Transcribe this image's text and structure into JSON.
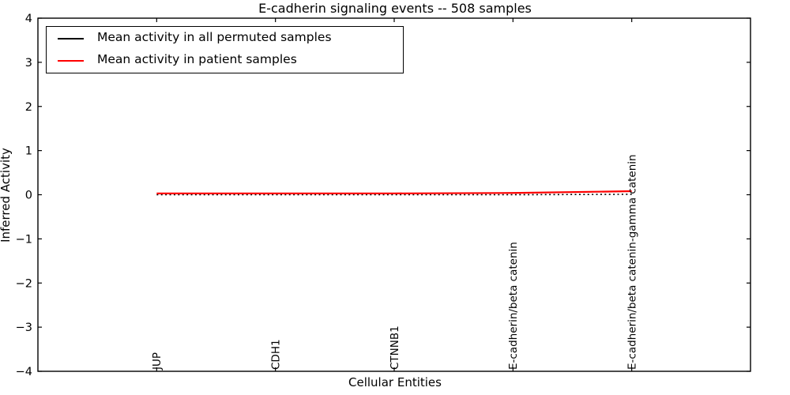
{
  "chart_data": {
    "type": "line",
    "title": "E-cadherin signaling events -- 508 samples",
    "xlabel": "Cellular Entities",
    "ylabel": "Inferred Activity",
    "xlim": [
      -1,
      5
    ],
    "ylim": [
      -4,
      4
    ],
    "grid": false,
    "yticks": [
      {
        "value": 4,
        "label": "4"
      },
      {
        "value": 3,
        "label": "3"
      },
      {
        "value": 2,
        "label": "2"
      },
      {
        "value": 1,
        "label": "1"
      },
      {
        "value": 0,
        "label": "0"
      },
      {
        "value": -1,
        "label": "−1"
      },
      {
        "value": -2,
        "label": "−2"
      },
      {
        "value": -3,
        "label": "−3"
      },
      {
        "value": -4,
        "label": "−4"
      }
    ],
    "categories": [
      "JUP",
      "CDH1",
      "CTNNB1",
      "E-cadherin/beta catenin",
      "E-cadherin/beta catenin-gamma catenin"
    ],
    "series": [
      {
        "name": "Mean activity in all permuted samples",
        "color": "#000000",
        "linestyle": "dotted",
        "linewidth": 1.6,
        "values": [
          0.0,
          0.0,
          0.0,
          0.0,
          0.01
        ]
      },
      {
        "name": "Mean activity in patient samples",
        "color": "#ff0000",
        "linestyle": "solid",
        "linewidth": 2.2,
        "values": [
          0.03,
          0.03,
          0.03,
          0.04,
          0.08
        ]
      }
    ],
    "legend": {
      "position": "upper left",
      "border_color": "#000000",
      "background": "#ffffff"
    }
  },
  "colors": {
    "background": "#ffffff",
    "axis": "#000000",
    "text": "#000000"
  }
}
